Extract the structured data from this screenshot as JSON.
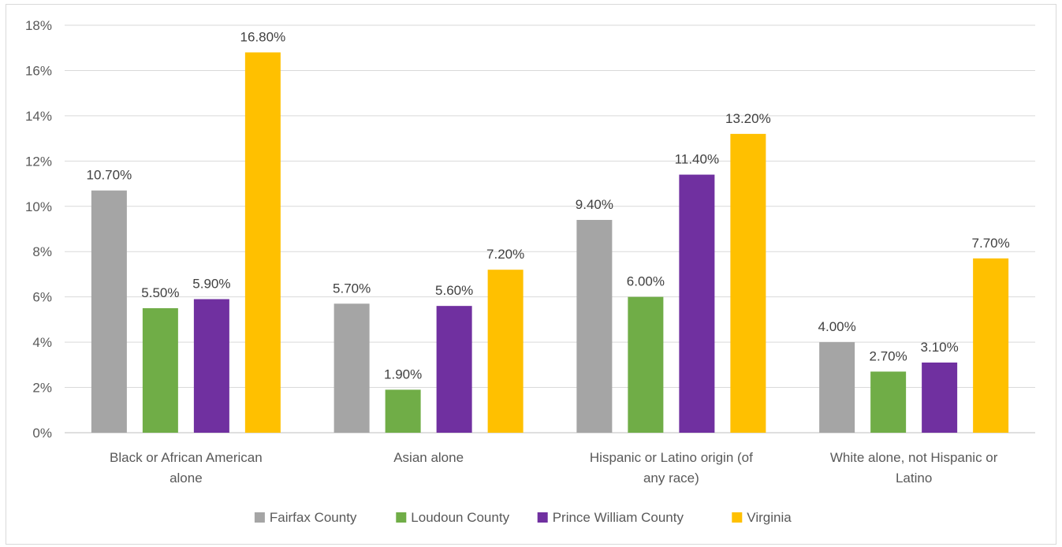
{
  "caption": "",
  "chart_data": {
    "type": "bar",
    "categories": [
      [
        "Black or African American",
        "alone"
      ],
      [
        "Asian alone"
      ],
      [
        "Hispanic or Latino origin (of",
        "any race)"
      ],
      [
        "White alone, not Hispanic or",
        "Latino"
      ]
    ],
    "series": [
      {
        "name": "Fairfax County",
        "color": "#a5a5a5",
        "values": [
          10.7,
          5.7,
          9.4,
          4.0
        ],
        "labels": [
          "10.70%",
          "5.70%",
          "9.40%",
          "4.00%"
        ]
      },
      {
        "name": "Loudoun County",
        "color": "#70ad47",
        "values": [
          5.5,
          1.9,
          6.0,
          2.7
        ],
        "labels": [
          "5.50%",
          "1.90%",
          "6.00%",
          "2.70%"
        ]
      },
      {
        "name": "Prince William County",
        "color": "#7030a0",
        "values": [
          5.9,
          5.6,
          11.4,
          3.1
        ],
        "labels": [
          "5.90%",
          "5.60%",
          "11.40%",
          "3.10%"
        ]
      },
      {
        "name": "Virginia",
        "color": "#ffc000",
        "values": [
          16.8,
          7.2,
          13.2,
          7.7
        ],
        "labels": [
          "16.80%",
          "7.20%",
          "13.20%",
          "7.70%"
        ]
      }
    ],
    "ylim": [
      0,
      18
    ],
    "yticks": [
      "0%",
      "2%",
      "4%",
      "6%",
      "8%",
      "10%",
      "12%",
      "14%",
      "16%",
      "18%"
    ],
    "grid": true,
    "legend_position": "bottom"
  }
}
